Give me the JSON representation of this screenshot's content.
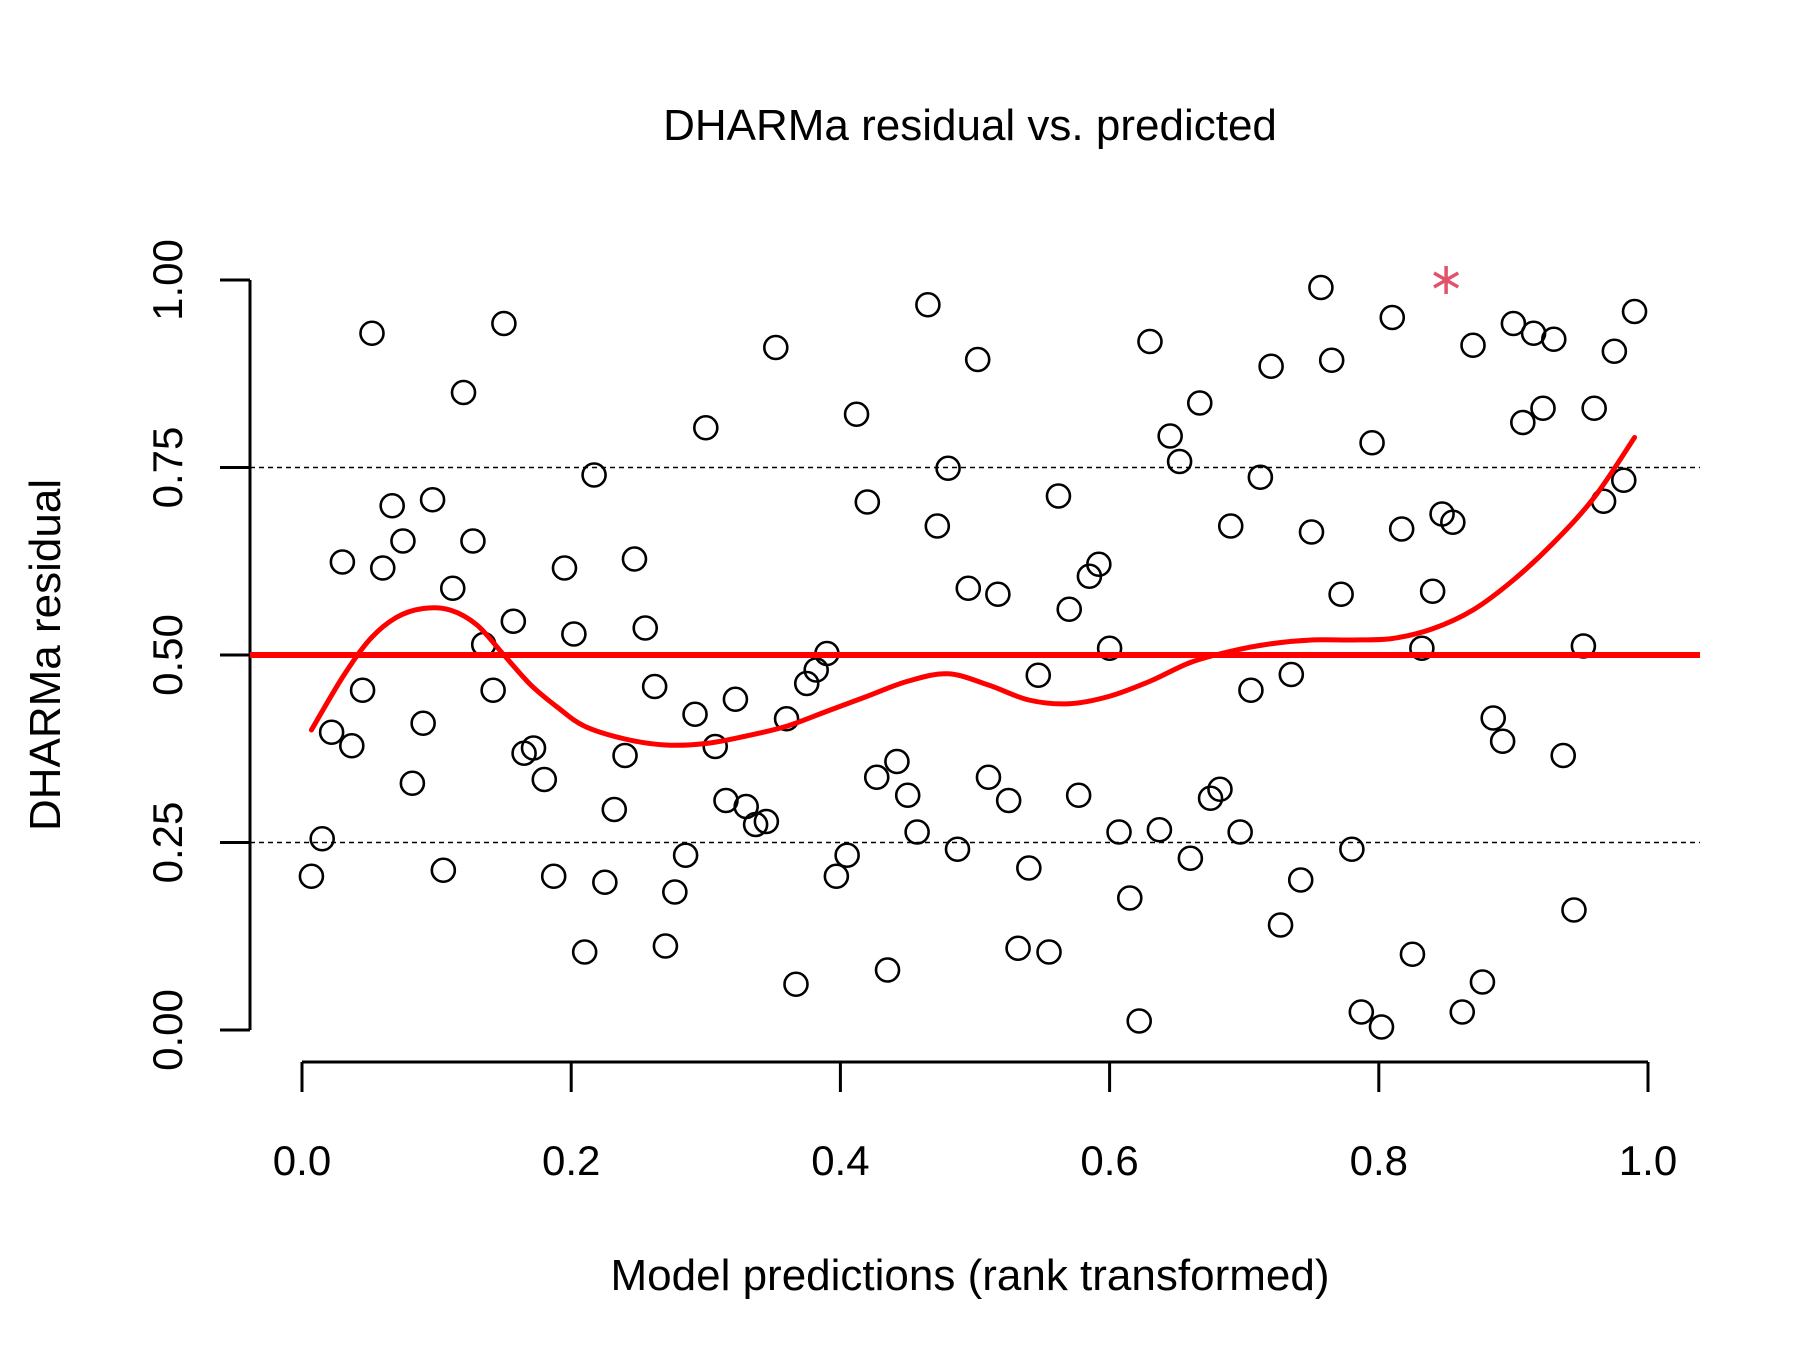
{
  "chart_data": {
    "type": "scatter",
    "title": "DHARMa residual vs. predicted",
    "xlabel": "Model predictions (rank transformed)",
    "ylabel": "DHARMa residual",
    "xlim": [
      0.0,
      1.0
    ],
    "ylim": [
      0.0,
      1.0
    ],
    "x_ticks": [
      "0.0",
      "0.2",
      "0.4",
      "0.6",
      "0.8",
      "1.0"
    ],
    "y_ticks": [
      "0.00",
      "0.25",
      "0.50",
      "0.75",
      "1.00"
    ],
    "reference_lines": {
      "dashed": [
        0.25,
        0.75
      ],
      "solid": 0.5
    },
    "colors": {
      "points": "#000000",
      "lines": "#ff0000",
      "outlier": "#df536b"
    },
    "series": [
      {
        "type": "scatter",
        "points": [
          [
            0.007,
            0.205
          ],
          [
            0.015,
            0.255
          ],
          [
            0.022,
            0.397
          ],
          [
            0.03,
            0.624
          ],
          [
            0.037,
            0.379
          ],
          [
            0.045,
            0.453
          ],
          [
            0.052,
            0.929
          ],
          [
            0.06,
            0.616
          ],
          [
            0.067,
            0.699
          ],
          [
            0.075,
            0.652
          ],
          [
            0.082,
            0.329
          ],
          [
            0.09,
            0.409
          ],
          [
            0.097,
            0.707
          ],
          [
            0.105,
            0.213
          ],
          [
            0.112,
            0.589
          ],
          [
            0.12,
            0.85
          ],
          [
            0.127,
            0.652
          ],
          [
            0.135,
            0.514
          ],
          [
            0.142,
            0.453
          ],
          [
            0.15,
            0.942
          ],
          [
            0.157,
            0.545
          ],
          [
            0.165,
            0.369
          ],
          [
            0.172,
            0.376
          ],
          [
            0.18,
            0.334
          ],
          [
            0.187,
            0.205
          ],
          [
            0.195,
            0.616
          ],
          [
            0.202,
            0.528
          ],
          [
            0.21,
            0.104
          ],
          [
            0.217,
            0.74
          ],
          [
            0.225,
            0.197
          ],
          [
            0.232,
            0.294
          ],
          [
            0.24,
            0.366
          ],
          [
            0.247,
            0.628
          ],
          [
            0.255,
            0.536
          ],
          [
            0.262,
            0.458
          ],
          [
            0.27,
            0.112
          ],
          [
            0.277,
            0.184
          ],
          [
            0.285,
            0.233
          ],
          [
            0.292,
            0.421
          ],
          [
            0.3,
            0.803
          ],
          [
            0.307,
            0.378
          ],
          [
            0.315,
            0.306
          ],
          [
            0.322,
            0.441
          ],
          [
            0.33,
            0.298
          ],
          [
            0.337,
            0.274
          ],
          [
            0.345,
            0.278
          ],
          [
            0.352,
            0.91
          ],
          [
            0.36,
            0.415
          ],
          [
            0.367,
            0.061
          ],
          [
            0.375,
            0.462
          ],
          [
            0.382,
            0.48
          ],
          [
            0.39,
            0.502
          ],
          [
            0.397,
            0.205
          ],
          [
            0.405,
            0.233
          ],
          [
            0.412,
            0.821
          ],
          [
            0.42,
            0.704
          ],
          [
            0.427,
            0.337
          ],
          [
            0.435,
            0.08
          ],
          [
            0.442,
            0.358
          ],
          [
            0.45,
            0.313
          ],
          [
            0.457,
            0.264
          ],
          [
            0.465,
            0.967
          ],
          [
            0.472,
            0.672
          ],
          [
            0.48,
            0.749
          ],
          [
            0.487,
            0.241
          ],
          [
            0.495,
            0.589
          ],
          [
            0.502,
            0.894
          ],
          [
            0.51,
            0.337
          ],
          [
            0.517,
            0.581
          ],
          [
            0.525,
            0.306
          ],
          [
            0.532,
            0.109
          ],
          [
            0.54,
            0.216
          ],
          [
            0.547,
            0.473
          ],
          [
            0.555,
            0.104
          ],
          [
            0.562,
            0.712
          ],
          [
            0.57,
            0.561
          ],
          [
            0.577,
            0.313
          ],
          [
            0.585,
            0.605
          ],
          [
            0.592,
            0.621
          ],
          [
            0.6,
            0.509
          ],
          [
            0.607,
            0.264
          ],
          [
            0.615,
            0.176
          ],
          [
            0.622,
            0.012
          ],
          [
            0.63,
            0.918
          ],
          [
            0.637,
            0.267
          ],
          [
            0.645,
            0.792
          ],
          [
            0.652,
            0.758
          ],
          [
            0.66,
            0.229
          ],
          [
            0.667,
            0.836
          ],
          [
            0.675,
            0.309
          ],
          [
            0.682,
            0.321
          ],
          [
            0.69,
            0.672
          ],
          [
            0.697,
            0.264
          ],
          [
            0.705,
            0.453
          ],
          [
            0.712,
            0.737
          ],
          [
            0.72,
            0.885
          ],
          [
            0.727,
            0.14
          ],
          [
            0.735,
            0.474
          ],
          [
            0.742,
            0.2
          ],
          [
            0.75,
            0.664
          ],
          [
            0.757,
            0.99
          ],
          [
            0.765,
            0.893
          ],
          [
            0.772,
            0.581
          ],
          [
            0.78,
            0.241
          ],
          [
            0.787,
            0.024
          ],
          [
            0.795,
            0.783
          ],
          [
            0.802,
            0.004
          ],
          [
            0.81,
            0.95
          ],
          [
            0.817,
            0.668
          ],
          [
            0.825,
            0.101
          ],
          [
            0.832,
            0.509
          ],
          [
            0.84,
            0.585
          ],
          [
            0.847,
            0.688
          ],
          [
            0.855,
            0.677
          ],
          [
            0.862,
            0.024
          ],
          [
            0.87,
            0.913
          ],
          [
            0.877,
            0.064
          ],
          [
            0.885,
            0.416
          ],
          [
            0.892,
            0.385
          ],
          [
            0.9,
            0.942
          ],
          [
            0.907,
            0.81
          ],
          [
            0.915,
            0.929
          ],
          [
            0.922,
            0.829
          ],
          [
            0.93,
            0.921
          ],
          [
            0.937,
            0.366
          ],
          [
            0.945,
            0.16
          ],
          [
            0.952,
            0.512
          ],
          [
            0.96,
            0.829
          ],
          [
            0.967,
            0.705
          ],
          [
            0.975,
            0.905
          ],
          [
            0.982,
            0.733
          ],
          [
            0.99,
            0.958
          ]
        ]
      },
      {
        "type": "outlier",
        "points": [
          [
            0.85,
            1.0
          ]
        ]
      },
      {
        "type": "line",
        "points": [
          [
            0.007,
            0.4
          ],
          [
            0.03,
            0.47
          ],
          [
            0.05,
            0.52
          ],
          [
            0.07,
            0.55
          ],
          [
            0.09,
            0.562
          ],
          [
            0.11,
            0.56
          ],
          [
            0.13,
            0.54
          ],
          [
            0.15,
            0.5
          ],
          [
            0.17,
            0.46
          ],
          [
            0.19,
            0.43
          ],
          [
            0.21,
            0.405
          ],
          [
            0.24,
            0.388
          ],
          [
            0.27,
            0.38
          ],
          [
            0.3,
            0.382
          ],
          [
            0.33,
            0.392
          ],
          [
            0.36,
            0.405
          ],
          [
            0.39,
            0.425
          ],
          [
            0.42,
            0.445
          ],
          [
            0.45,
            0.465
          ],
          [
            0.48,
            0.475
          ],
          [
            0.51,
            0.46
          ],
          [
            0.54,
            0.44
          ],
          [
            0.57,
            0.435
          ],
          [
            0.6,
            0.445
          ],
          [
            0.63,
            0.465
          ],
          [
            0.66,
            0.49
          ],
          [
            0.69,
            0.505
          ],
          [
            0.72,
            0.515
          ],
          [
            0.75,
            0.52
          ],
          [
            0.78,
            0.52
          ],
          [
            0.81,
            0.522
          ],
          [
            0.84,
            0.535
          ],
          [
            0.87,
            0.56
          ],
          [
            0.9,
            0.6
          ],
          [
            0.93,
            0.65
          ],
          [
            0.96,
            0.71
          ],
          [
            0.99,
            0.79
          ]
        ]
      }
    ]
  }
}
